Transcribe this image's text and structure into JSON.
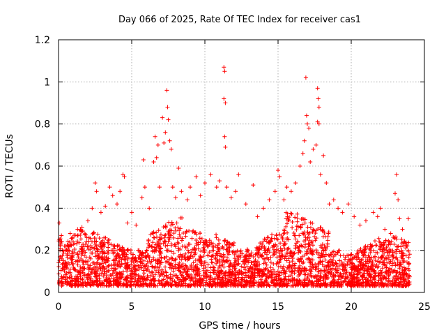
{
  "chart_data": {
    "type": "scatter",
    "title": "Day 066 of 2025, Rate Of TEC Index for receiver cas1",
    "xlabel": "GPS time / hours",
    "ylabel": "ROTI / TECUs",
    "xlim": [
      0,
      25
    ],
    "ylim": [
      0,
      1.2
    ],
    "xticks": [
      0,
      5,
      10,
      15,
      20,
      25
    ],
    "yticks": [
      0,
      0.2,
      0.4,
      0.6,
      0.8,
      1,
      1.2
    ],
    "grid": true,
    "legend": "none",
    "marker": "plus",
    "color": "#ff0000",
    "series": [
      {
        "values_note_x_hours_y_tecus": true,
        "points": [
          [
            0.05,
            0.33
          ],
          [
            0.2,
            0.27
          ],
          [
            0.5,
            0.22
          ],
          [
            1.0,
            0.24
          ],
          [
            1.3,
            0.3
          ],
          [
            1.6,
            0.31
          ],
          [
            2.0,
            0.34
          ],
          [
            2.3,
            0.4
          ],
          [
            2.5,
            0.52
          ],
          [
            2.6,
            0.48
          ],
          [
            2.9,
            0.38
          ],
          [
            3.2,
            0.41
          ],
          [
            3.5,
            0.5
          ],
          [
            3.7,
            0.46
          ],
          [
            4.0,
            0.42
          ],
          [
            4.2,
            0.48
          ],
          [
            4.4,
            0.56
          ],
          [
            4.5,
            0.55
          ],
          [
            4.7,
            0.33
          ],
          [
            5.0,
            0.38
          ],
          [
            5.3,
            0.32
          ],
          [
            5.7,
            0.45
          ],
          [
            5.8,
            0.63
          ],
          [
            5.9,
            0.5
          ],
          [
            6.2,
            0.4
          ],
          [
            6.5,
            0.62
          ],
          [
            6.6,
            0.74
          ],
          [
            6.7,
            0.64
          ],
          [
            6.8,
            0.7
          ],
          [
            6.9,
            0.5
          ],
          [
            7.1,
            0.83
          ],
          [
            7.2,
            0.71
          ],
          [
            7.3,
            0.76
          ],
          [
            7.4,
            0.96
          ],
          [
            7.45,
            0.88
          ],
          [
            7.5,
            0.82
          ],
          [
            7.6,
            0.72
          ],
          [
            7.7,
            0.68
          ],
          [
            7.8,
            0.5
          ],
          [
            8.0,
            0.45
          ],
          [
            8.2,
            0.59
          ],
          [
            8.4,
            0.48
          ],
          [
            8.8,
            0.44
          ],
          [
            9.0,
            0.5
          ],
          [
            9.4,
            0.55
          ],
          [
            9.7,
            0.46
          ],
          [
            10.0,
            0.52
          ],
          [
            10.4,
            0.56
          ],
          [
            10.8,
            0.5
          ],
          [
            11.0,
            0.53
          ],
          [
            11.3,
            1.07
          ],
          [
            11.35,
            1.05
          ],
          [
            11.3,
            0.92
          ],
          [
            11.4,
            0.9
          ],
          [
            11.35,
            0.74
          ],
          [
            11.4,
            0.69
          ],
          [
            11.5,
            0.5
          ],
          [
            11.8,
            0.45
          ],
          [
            12.1,
            0.48
          ],
          [
            12.3,
            0.56
          ],
          [
            12.8,
            0.42
          ],
          [
            13.3,
            0.51
          ],
          [
            13.6,
            0.36
          ],
          [
            14.0,
            0.4
          ],
          [
            14.4,
            0.44
          ],
          [
            14.8,
            0.48
          ],
          [
            15.0,
            0.58
          ],
          [
            15.1,
            0.55
          ],
          [
            15.4,
            0.44
          ],
          [
            15.6,
            0.5
          ],
          [
            15.9,
            0.48
          ],
          [
            16.2,
            0.52
          ],
          [
            16.5,
            0.6
          ],
          [
            16.7,
            0.66
          ],
          [
            16.8,
            0.72
          ],
          [
            16.9,
            1.02
          ],
          [
            16.95,
            0.84
          ],
          [
            17.0,
            0.8
          ],
          [
            17.1,
            0.78
          ],
          [
            17.2,
            0.62
          ],
          [
            17.4,
            0.68
          ],
          [
            17.6,
            0.7
          ],
          [
            17.7,
            0.97
          ],
          [
            17.75,
            0.92
          ],
          [
            17.8,
            0.88
          ],
          [
            17.7,
            0.81
          ],
          [
            17.8,
            0.8
          ],
          [
            17.9,
            0.56
          ],
          [
            18.1,
            0.65
          ],
          [
            18.3,
            0.52
          ],
          [
            18.5,
            0.42
          ],
          [
            18.8,
            0.44
          ],
          [
            19.1,
            0.4
          ],
          [
            19.4,
            0.38
          ],
          [
            19.8,
            0.42
          ],
          [
            20.2,
            0.36
          ],
          [
            20.6,
            0.32
          ],
          [
            21.0,
            0.34
          ],
          [
            21.5,
            0.38
          ],
          [
            21.8,
            0.36
          ],
          [
            22.0,
            0.4
          ],
          [
            22.3,
            0.3
          ],
          [
            22.7,
            0.28
          ],
          [
            23.0,
            0.47
          ],
          [
            23.1,
            0.56
          ],
          [
            23.2,
            0.44
          ],
          [
            23.3,
            0.35
          ],
          [
            23.5,
            0.3
          ],
          [
            23.8,
            0.22
          ],
          [
            23.9,
            0.35
          ]
        ]
      }
    ]
  }
}
